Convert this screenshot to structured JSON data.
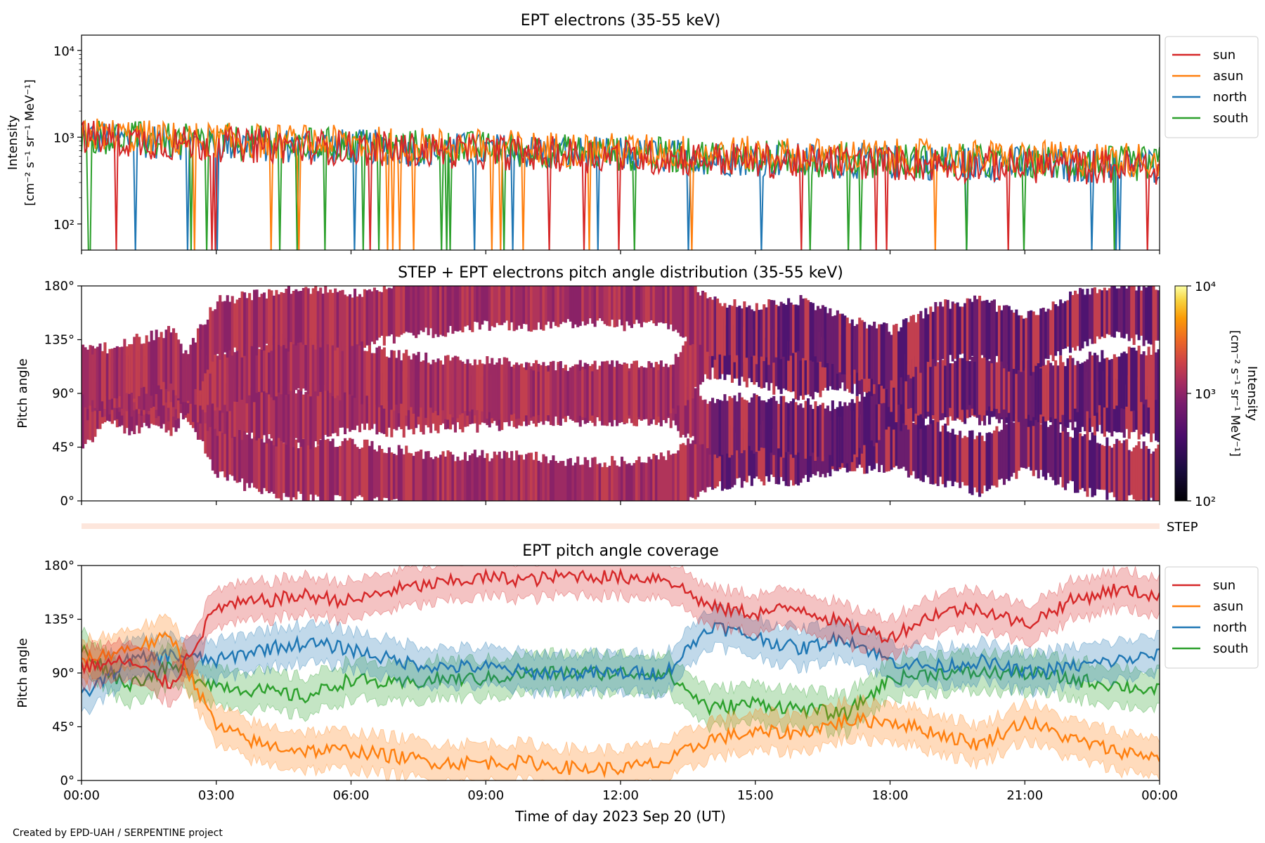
{
  "figure": {
    "footer": "Created by EPD-UAH / SERPENTINE project",
    "x_axis_label": "Time of day 2023 Sep 20 (UT)",
    "x_ticks": [
      "00:00",
      "03:00",
      "06:00",
      "09:00",
      "12:00",
      "15:00",
      "18:00",
      "21:00",
      "00:00"
    ]
  },
  "colors": {
    "sun": "#d62728",
    "asun": "#ff7f0e",
    "north": "#1f77b4",
    "south": "#2ca02c"
  },
  "chart_data": [
    {
      "type": "line",
      "title": "EPT electrons (35-55 keV)",
      "xlabel": "",
      "ylabel": "Intensity",
      "ylabel_units": "[cm⁻² s⁻¹ sr⁻¹ MeV⁻¹]",
      "yscale": "log",
      "ylim": [
        50,
        15000
      ],
      "y_ticks": [
        {
          "value": 100,
          "label": "10²"
        },
        {
          "value": 1000,
          "label": "10³"
        },
        {
          "value": 10000,
          "label": "10⁴"
        }
      ],
      "x_unit": "hours since 2023-09-20 00:00 UT",
      "xlim": [
        0,
        24
      ],
      "legend": "outside-right",
      "series": [
        {
          "name": "sun",
          "x": [
            0,
            2,
            4,
            6,
            8,
            10,
            12,
            14,
            16,
            18,
            20,
            22,
            24
          ],
          "values": [
            1000,
            850,
            800,
            750,
            700,
            650,
            600,
            560,
            520,
            500,
            480,
            460,
            450
          ]
        },
        {
          "name": "asun",
          "x": [
            0,
            2,
            4,
            6,
            8,
            10,
            12,
            14,
            16,
            18,
            20,
            22,
            24
          ],
          "values": [
            1100,
            950,
            900,
            850,
            800,
            750,
            700,
            660,
            620,
            600,
            580,
            560,
            550
          ]
        },
        {
          "name": "north",
          "x": [
            0,
            2,
            4,
            6,
            8,
            10,
            12,
            14,
            16,
            18,
            20,
            22,
            24
          ],
          "values": [
            1000,
            880,
            820,
            780,
            720,
            680,
            620,
            580,
            540,
            520,
            500,
            480,
            470
          ]
        },
        {
          "name": "south",
          "x": [
            0,
            2,
            4,
            6,
            8,
            10,
            12,
            14,
            16,
            18,
            20,
            22,
            24
          ],
          "values": [
            1050,
            900,
            850,
            800,
            760,
            700,
            650,
            600,
            560,
            540,
            520,
            500,
            490
          ]
        }
      ]
    },
    {
      "type": "heatmap",
      "title": "STEP + EPT electrons pitch angle distribution (35-55 keV)",
      "ylabel": "Pitch angle",
      "ylim": [
        0,
        180
      ],
      "y_ticks": [
        "0°",
        "45°",
        "90°",
        "135°",
        "180°"
      ],
      "xlim": [
        0,
        24
      ],
      "colorbar": {
        "label": "Intensity",
        "units": "[cm⁻² s⁻¹ sr⁻¹ MeV⁻¹]",
        "scale": "log",
        "range": [
          100,
          10000
        ],
        "ticks": [
          "10²",
          "10³",
          "10⁴"
        ],
        "colormap": "inferno"
      },
      "step_label": "STEP"
    },
    {
      "type": "line",
      "title": "EPT pitch angle coverage",
      "xlabel": "Time of day 2023 Sep 20 (UT)",
      "ylabel": "Pitch angle",
      "ylim": [
        0,
        180
      ],
      "y_ticks": [
        "0°",
        "45°",
        "90°",
        "135°",
        "180°"
      ],
      "x_unit": "hours since 2023-09-20 00:00 UT",
      "xlim": [
        0,
        24
      ],
      "legend": "outside-right",
      "series": [
        {
          "name": "sun",
          "x": [
            0,
            1,
            2,
            3,
            4,
            5,
            6,
            7,
            8,
            9,
            10,
            11,
            12,
            13,
            14,
            15,
            16,
            17,
            18,
            19,
            20,
            21,
            22,
            23,
            24
          ],
          "values": [
            95,
            100,
            80,
            145,
            150,
            155,
            150,
            160,
            165,
            170,
            168,
            172,
            170,
            170,
            145,
            140,
            145,
            130,
            120,
            140,
            145,
            130,
            150,
            160,
            155
          ]
        },
        {
          "name": "asun",
          "x": [
            0,
            1,
            2,
            3,
            4,
            5,
            6,
            7,
            8,
            9,
            10,
            11,
            12,
            13,
            14,
            15,
            16,
            17,
            18,
            19,
            20,
            21,
            22,
            23,
            24
          ],
          "values": [
            100,
            110,
            120,
            45,
            30,
            25,
            25,
            20,
            15,
            15,
            15,
            10,
            10,
            15,
            35,
            40,
            40,
            50,
            50,
            40,
            30,
            50,
            35,
            25,
            20
          ]
        },
        {
          "name": "north",
          "x": [
            0,
            1,
            2,
            3,
            4,
            5,
            6,
            7,
            8,
            9,
            10,
            11,
            12,
            13,
            14,
            15,
            16,
            17,
            18,
            19,
            20,
            21,
            22,
            23,
            24
          ],
          "values": [
            70,
            100,
            105,
            100,
            110,
            115,
            110,
            100,
            95,
            95,
            90,
            90,
            90,
            90,
            130,
            120,
            110,
            120,
            100,
            95,
            100,
            90,
            95,
            100,
            105
          ]
        },
        {
          "name": "south",
          "x": [
            0,
            1,
            2,
            3,
            4,
            5,
            6,
            7,
            8,
            9,
            10,
            11,
            12,
            13,
            14,
            15,
            16,
            17,
            18,
            19,
            20,
            21,
            22,
            23,
            24
          ],
          "values": [
            110,
            80,
            95,
            80,
            75,
            70,
            85,
            80,
            85,
            85,
            90,
            90,
            90,
            90,
            60,
            65,
            60,
            55,
            85,
            90,
            90,
            90,
            85,
            80,
            75
          ]
        }
      ]
    }
  ]
}
